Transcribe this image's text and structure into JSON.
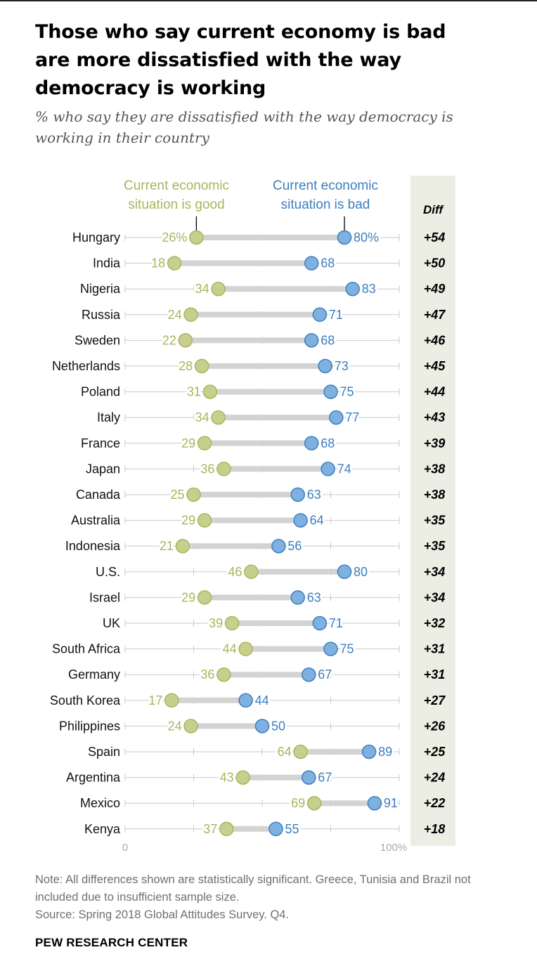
{
  "header": {
    "title": "Those who say current economy is bad are more dissatisfied with the way democracy is working",
    "subtitle": "% who say they are dissatisfied with the way democracy is working in their country"
  },
  "footer": {
    "note": "Note: All differences shown are statistically significant. Greece, Tunisia and Brazil not included due to insufficient sample size.",
    "source": "Source: Spring 2018 Global Attitudes Survey. Q4.",
    "org": "PEW RESEARCH CENTER"
  },
  "colors": {
    "good": "#a8b55c",
    "good_fill": "#c8cf8e",
    "bad": "#3b7fbf",
    "bad_fill": "#7fb1e0",
    "diff_panel": "#ecede3"
  },
  "chart_data": {
    "type": "dot-plot",
    "xlim": [
      0,
      100
    ],
    "tick_labels": [
      "0",
      "100%"
    ],
    "diff_header": "Diff",
    "legend": {
      "good": [
        "Current economic",
        "situation is good"
      ],
      "bad": [
        "Current economic",
        "situation is bad"
      ]
    },
    "rows": [
      {
        "country": "Hungary",
        "good": 26,
        "bad": 80,
        "good_label": "26%",
        "bad_label": "80%",
        "diff": "+54"
      },
      {
        "country": "India",
        "good": 18,
        "bad": 68,
        "good_label": "18",
        "bad_label": "68",
        "diff": "+50"
      },
      {
        "country": "Nigeria",
        "good": 34,
        "bad": 83,
        "good_label": "34",
        "bad_label": "83",
        "diff": "+49"
      },
      {
        "country": "Russia",
        "good": 24,
        "bad": 71,
        "good_label": "24",
        "bad_label": "71",
        "diff": "+47"
      },
      {
        "country": "Sweden",
        "good": 22,
        "bad": 68,
        "good_label": "22",
        "bad_label": "68",
        "diff": "+46"
      },
      {
        "country": "Netherlands",
        "good": 28,
        "bad": 73,
        "good_label": "28",
        "bad_label": "73",
        "diff": "+45"
      },
      {
        "country": "Poland",
        "good": 31,
        "bad": 75,
        "good_label": "31",
        "bad_label": "75",
        "diff": "+44"
      },
      {
        "country": "Italy",
        "good": 34,
        "bad": 77,
        "good_label": "34",
        "bad_label": "77",
        "diff": "+43"
      },
      {
        "country": "France",
        "good": 29,
        "bad": 68,
        "good_label": "29",
        "bad_label": "68",
        "diff": "+39"
      },
      {
        "country": "Japan",
        "good": 36,
        "bad": 74,
        "good_label": "36",
        "bad_label": "74",
        "diff": "+38"
      },
      {
        "country": "Canada",
        "good": 25,
        "bad": 63,
        "good_label": "25",
        "bad_label": "63",
        "diff": "+38"
      },
      {
        "country": "Australia",
        "good": 29,
        "bad": 64,
        "good_label": "29",
        "bad_label": "64",
        "diff": "+35"
      },
      {
        "country": "Indonesia",
        "good": 21,
        "bad": 56,
        "good_label": "21",
        "bad_label": "56",
        "diff": "+35"
      },
      {
        "country": "U.S.",
        "good": 46,
        "bad": 80,
        "good_label": "46",
        "bad_label": "80",
        "diff": "+34"
      },
      {
        "country": "Israel",
        "good": 29,
        "bad": 63,
        "good_label": "29",
        "bad_label": "63",
        "diff": "+34"
      },
      {
        "country": "UK",
        "good": 39,
        "bad": 71,
        "good_label": "39",
        "bad_label": "71",
        "diff": "+32"
      },
      {
        "country": "South Africa",
        "good": 44,
        "bad": 75,
        "good_label": "44",
        "bad_label": "75",
        "diff": "+31"
      },
      {
        "country": "Germany",
        "good": 36,
        "bad": 67,
        "good_label": "36",
        "bad_label": "67",
        "diff": "+31"
      },
      {
        "country": "South Korea",
        "good": 17,
        "bad": 44,
        "good_label": "17",
        "bad_label": "44",
        "diff": "+27"
      },
      {
        "country": "Philippines",
        "good": 24,
        "bad": 50,
        "good_label": "24",
        "bad_label": "50",
        "diff": "+26"
      },
      {
        "country": "Spain",
        "good": 64,
        "bad": 89,
        "good_label": "64",
        "bad_label": "89",
        "diff": "+25"
      },
      {
        "country": "Argentina",
        "good": 43,
        "bad": 67,
        "good_label": "43",
        "bad_label": "67",
        "diff": "+24"
      },
      {
        "country": "Mexico",
        "good": 69,
        "bad": 91,
        "good_label": "69",
        "bad_label": "91",
        "diff": "+22"
      },
      {
        "country": "Kenya",
        "good": 37,
        "bad": 55,
        "good_label": "37",
        "bad_label": "55",
        "diff": "+18"
      }
    ]
  }
}
